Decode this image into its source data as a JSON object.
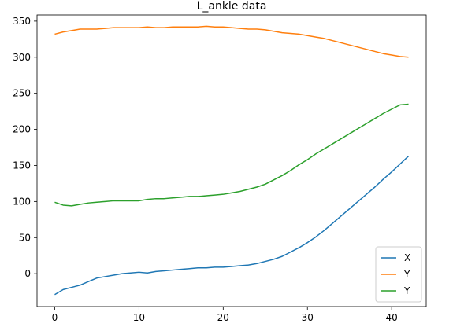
{
  "chart_data": {
    "type": "line",
    "title": "L_ankle data",
    "xlabel": "",
    "ylabel": "",
    "xlim": [
      -2.1,
      44.1
    ],
    "ylim": [
      -45.6,
      358.6
    ],
    "xticks": [
      0,
      10,
      20,
      30,
      40
    ],
    "yticks": [
      0,
      50,
      100,
      150,
      200,
      250,
      300,
      350
    ],
    "grid": false,
    "legend_position": "bottom-right",
    "x": [
      0,
      1,
      2,
      3,
      4,
      5,
      6,
      7,
      8,
      9,
      10,
      11,
      12,
      13,
      14,
      15,
      16,
      17,
      18,
      19,
      20,
      21,
      22,
      23,
      24,
      25,
      26,
      27,
      28,
      29,
      30,
      31,
      32,
      33,
      34,
      35,
      36,
      37,
      38,
      39,
      40,
      41,
      42
    ],
    "series": [
      {
        "name": "X",
        "color": "#1f77b4",
        "values": [
          -29,
          -22,
          -19,
          -16,
          -11,
          -6,
          -4,
          -2,
          0,
          1,
          2,
          1,
          3,
          4,
          5,
          6,
          7,
          8,
          8,
          9,
          9,
          10,
          11,
          12,
          14,
          17,
          20,
          24,
          30,
          36,
          43,
          51,
          60,
          70,
          80,
          90,
          100,
          110,
          120,
          131,
          141,
          152,
          163
        ]
      },
      {
        "name": "Y",
        "color": "#ff7f0e",
        "values": [
          332,
          335,
          337,
          339,
          339,
          339,
          340,
          341,
          341,
          341,
          341,
          342,
          341,
          341,
          342,
          342,
          342,
          342,
          343,
          342,
          342,
          341,
          340,
          339,
          339,
          338,
          336,
          334,
          333,
          332,
          330,
          328,
          326,
          323,
          320,
          317,
          314,
          311,
          308,
          305,
          303,
          301,
          300
        ]
      },
      {
        "name": "Y",
        "color": "#2ca02c",
        "values": [
          99,
          95,
          94,
          96,
          98,
          99,
          100,
          101,
          101,
          101,
          101,
          103,
          104,
          104,
          105,
          106,
          107,
          107,
          108,
          109,
          110,
          112,
          114,
          117,
          120,
          124,
          130,
          136,
          143,
          151,
          158,
          166,
          173,
          180,
          187,
          194,
          201,
          208,
          215,
          222,
          228,
          234,
          235
        ]
      }
    ]
  }
}
